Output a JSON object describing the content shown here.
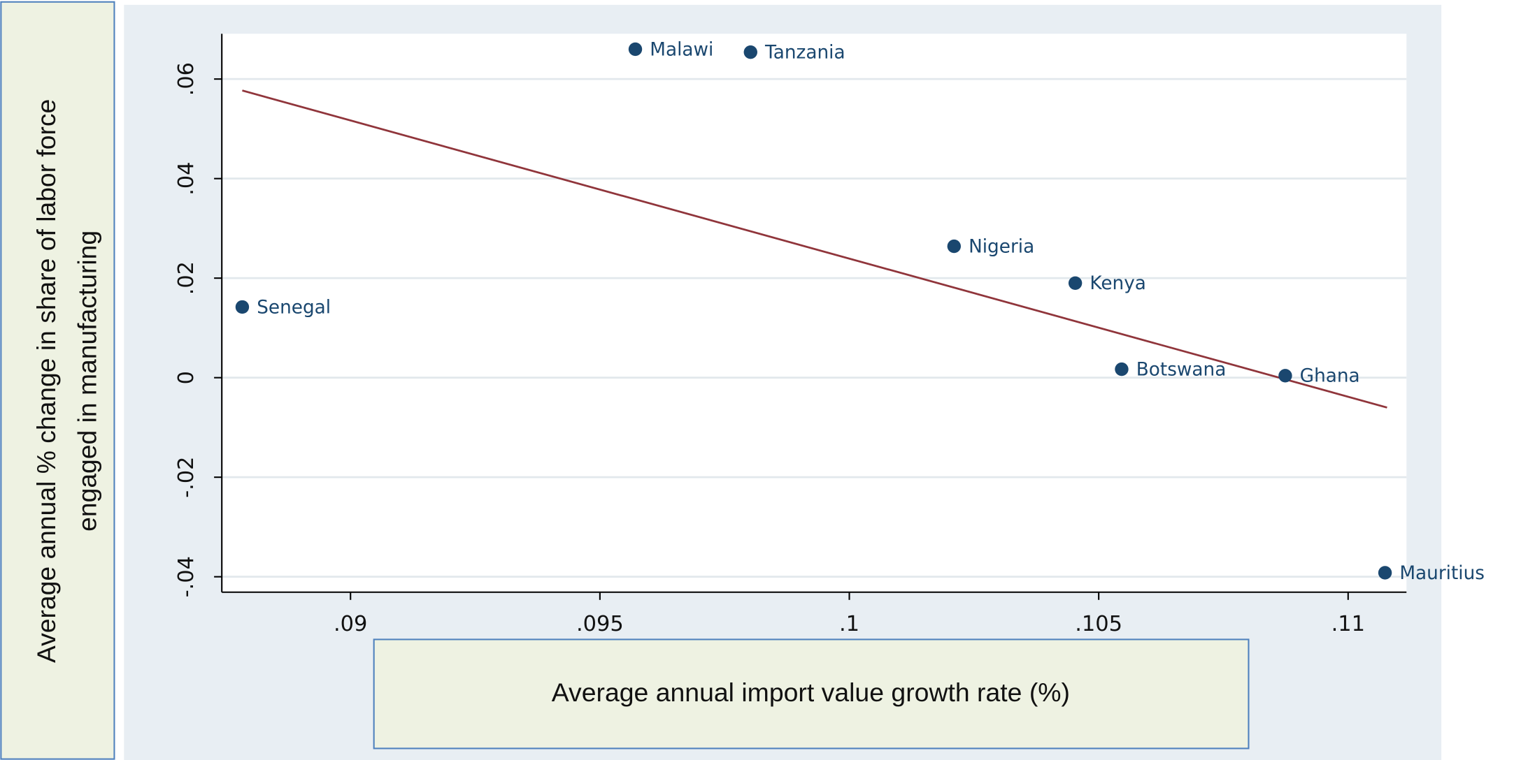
{
  "chart_data": {
    "type": "scatter",
    "x_label": "Average annual import value growth rate (%)",
    "y_label": [
      "Average annual % change in share of labor force",
      "engaged in manufacturing"
    ],
    "xlim": [
      0.08742,
      0.11117
    ],
    "ylim": [
      -0.0431,
      0.0691
    ],
    "xticks": [
      {
        "value": 0.09,
        "label": ".09"
      },
      {
        "value": 0.095,
        "label": ".095"
      },
      {
        "value": 0.1,
        "label": ".1"
      },
      {
        "value": 0.105,
        "label": ".105"
      },
      {
        "value": 0.11,
        "label": ".11"
      }
    ],
    "yticks": [
      {
        "value": -0.04,
        "label": "-.04"
      },
      {
        "value": -0.02,
        "label": "-.02"
      },
      0,
      {
        "value": 0.02,
        "label": ".02"
      },
      {
        "value": 0.04,
        "label": ".04"
      },
      {
        "value": 0.06,
        "label": ".06"
      }
    ],
    "grid": true,
    "points": {
      "color": "#1a476f",
      "labels": [
        "Senegal",
        "Malawi",
        "Tanzania",
        "Nigeria",
        "Kenya",
        "Botswana",
        "Ghana",
        "Mauritius"
      ],
      "x": [
        0.08783,
        0.09571,
        0.09802,
        0.1021,
        0.10453,
        0.10546,
        0.10874,
        0.11074
      ],
      "y": [
        0.0142,
        0.066,
        0.0654,
        0.0264,
        0.019,
        0.0017,
        0.0004,
        -0.0392
      ]
    },
    "fit_line": {
      "color": "#90353b",
      "x": [
        0.08783,
        0.11078
      ],
      "y": [
        0.0577,
        -0.006
      ]
    }
  }
}
